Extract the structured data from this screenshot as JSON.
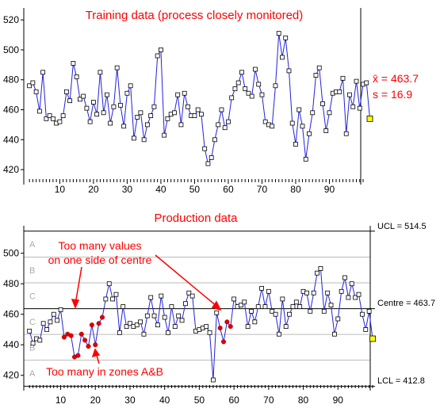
{
  "chart_data": [
    {
      "type": "line",
      "title": "Training data (process closely monitored)",
      "xlim": [
        1,
        100
      ],
      "ylim": [
        410,
        528
      ],
      "y_ticks": [
        420,
        440,
        460,
        480,
        500,
        520
      ],
      "x_ticks": [
        10,
        20,
        30,
        40,
        50,
        60,
        70,
        80,
        90
      ],
      "grid": false,
      "series": [
        {
          "values": [
            476,
            478,
            472,
            459,
            485,
            454,
            456,
            454,
            451,
            452,
            456,
            472,
            466,
            491,
            482,
            467,
            469,
            461,
            452,
            465,
            457,
            485,
            458,
            470,
            451,
            462,
            488,
            463,
            449,
            471,
            476,
            441,
            455,
            458,
            440,
            450,
            456,
            462,
            496,
            500,
            443,
            454,
            457,
            458,
            470,
            450,
            471,
            462,
            456,
            456,
            460,
            457,
            434,
            424,
            428,
            440,
            450,
            460,
            448,
            452,
            468,
            474,
            478,
            485,
            474,
            471,
            469,
            487,
            477,
            470,
            452,
            450,
            449,
            476,
            511,
            495,
            508,
            486,
            451,
            437,
            460,
            449,
            427,
            444,
            458,
            483,
            488,
            464,
            446,
            458,
            471,
            472,
            472,
            481,
            444,
            470,
            462,
            479,
            461,
            477,
            478,
            454
          ],
          "highlight_last": true
        }
      ],
      "annotations": [
        {
          "label_text": "x̄ = 463.7"
        },
        {
          "label_text": "s = 16.9"
        }
      ],
      "x_bar_label": "x̄",
      "x_bar_value": " = 463.7",
      "s_label": "s = 16.9"
    },
    {
      "type": "line",
      "title": "Production data",
      "xlim": [
        1,
        100
      ],
      "ylim": [
        410,
        518
      ],
      "y_ticks": [
        420,
        440,
        460,
        480,
        500
      ],
      "x_ticks": [
        10,
        20,
        30,
        40,
        50,
        60,
        70,
        80,
        90
      ],
      "grid": false,
      "control_lines": {
        "ucl": 514.5,
        "centre": 463.7,
        "lcl": 412.8,
        "sigma": 16.9
      },
      "zone_labels": [
        "A",
        "B",
        "C",
        "C",
        "B",
        "A"
      ],
      "line_labels": {
        "ucl": "UCL = 514.5",
        "centre": "Centre = 463.7",
        "lcl": "LCL = 412.8"
      },
      "series": [
        {
          "values": [
            449,
            441,
            444,
            443,
            454,
            450,
            455,
            460,
            456,
            463,
            445,
            447,
            446,
            432,
            433,
            447,
            443,
            439,
            453,
            440,
            454,
            458,
            470,
            480,
            470,
            473,
            448,
            465,
            452,
            454,
            452,
            453,
            455,
            447,
            459,
            471,
            459,
            453,
            472,
            458,
            448,
            465,
            452,
            459,
            456,
            467,
            474,
            472,
            449,
            450,
            451,
            452,
            448,
            417,
            461,
            451,
            442,
            455,
            452,
            470,
            465,
            466,
            468,
            452,
            462,
            455,
            465,
            477,
            465,
            475,
            462,
            460,
            447,
            470,
            452,
            460,
            465,
            468,
            465,
            475,
            474,
            462,
            474,
            487,
            490,
            462,
            474,
            466,
            447,
            457,
            475,
            484,
            471,
            480,
            471,
            473,
            460,
            450,
            462,
            444
          ],
          "red_points": [
            11,
            12,
            13,
            14,
            15,
            16,
            17,
            18,
            19,
            20,
            21,
            22,
            56,
            57,
            58,
            59
          ],
          "highlight_last": true
        }
      ],
      "annotations": [
        {
          "text_lines": [
            "Too many values",
            "on one side of centre"
          ]
        },
        {
          "text_lines": [
            "Too many in zones A&B"
          ]
        }
      ]
    }
  ]
}
